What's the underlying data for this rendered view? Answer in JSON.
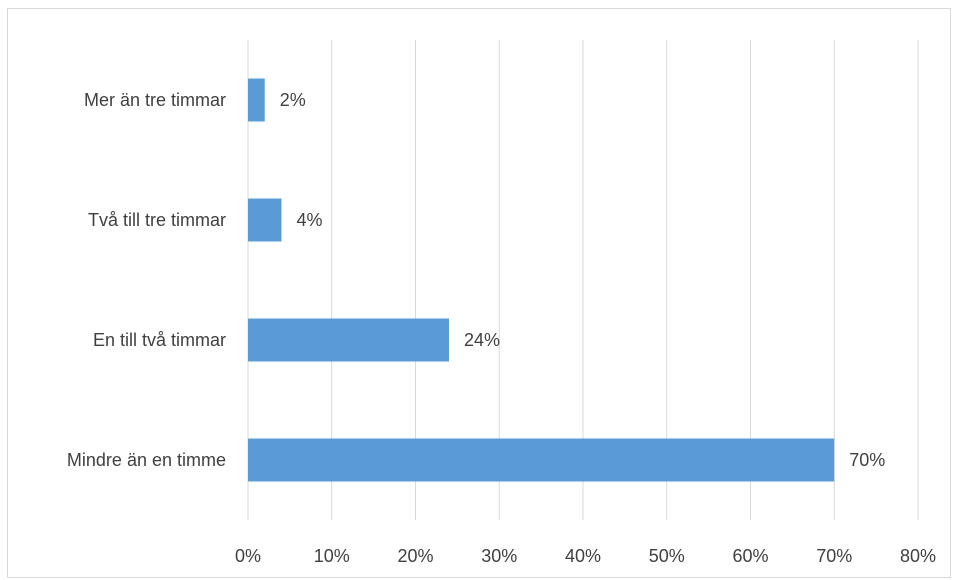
{
  "chart_data": {
    "type": "bar",
    "orientation": "horizontal",
    "categories": [
      "Mindre än en timme",
      "En till två timmar",
      "Två till tre timmar",
      "Mer än tre timmar"
    ],
    "values": [
      70,
      24,
      4,
      2
    ],
    "data_labels": [
      "70%",
      "24%",
      "4%",
      "2%"
    ],
    "x_ticks": [
      "0%",
      "10%",
      "20%",
      "30%",
      "40%",
      "50%",
      "60%",
      "70%",
      "80%"
    ],
    "xlim": [
      0,
      80
    ],
    "grid": true,
    "legend": "none",
    "bar_color": "#5b9bd5",
    "grid_color": "#d9d9d9",
    "text_color": "#404040"
  }
}
